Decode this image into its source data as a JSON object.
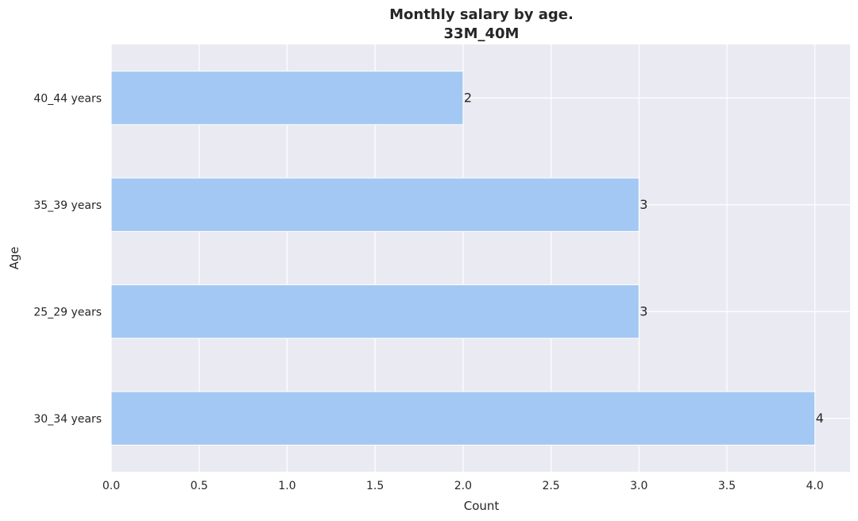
{
  "chart_data": {
    "type": "bar",
    "orientation": "horizontal",
    "title": "Monthly salary by age.",
    "subtitle": "33M_40M",
    "xlabel": "Count",
    "ylabel": "Age",
    "categories": [
      "40_44 years",
      "35_39 years",
      "25_29 years",
      "30_34 years"
    ],
    "values": [
      2,
      3,
      3,
      4
    ],
    "data_labels": [
      "2",
      "3",
      "3",
      "4"
    ],
    "xlim": [
      0,
      4.2
    ],
    "xticks": [
      0.0,
      0.5,
      1.0,
      1.5,
      2.0,
      2.5,
      3.0,
      3.5,
      4.0
    ],
    "xtick_labels": [
      "0.0",
      "0.5",
      "1.0",
      "1.5",
      "2.0",
      "2.5",
      "3.0",
      "3.5",
      "4.0"
    ],
    "grid": true,
    "colors": {
      "bar": "#a3c8f3",
      "background": "#eaeaf2",
      "grid": "#ffffff",
      "text": "#262626"
    }
  }
}
